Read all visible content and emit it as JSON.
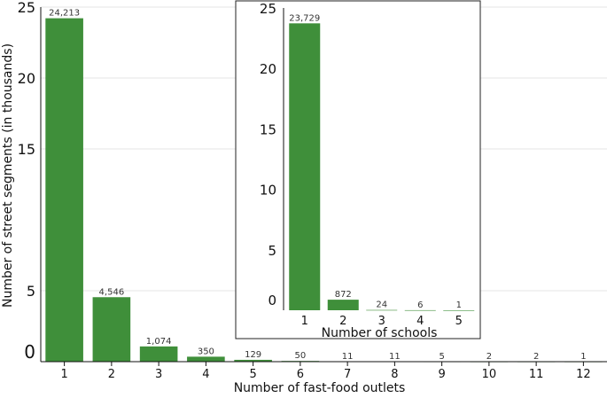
{
  "chart_data": [
    {
      "type": "bar",
      "categories": [
        "1",
        "2",
        "3",
        "4",
        "5",
        "6",
        "7",
        "8",
        "9",
        "10",
        "11",
        "12"
      ],
      "values": [
        24.213,
        4.546,
        1.074,
        0.35,
        0.129,
        0.05,
        0.011,
        0.011,
        0.005,
        0.002,
        0.002,
        0.001
      ],
      "data_labels": [
        "24,213",
        "4,546",
        "1,074",
        "350",
        "129",
        "50",
        "11",
        "11",
        "5",
        "2",
        "2",
        "1"
      ],
      "xlabel": "Number of fast-food outlets",
      "ylabel": "Number of street segments (in thousands)",
      "ylim": [
        0,
        25
      ],
      "yticks": [
        0,
        5,
        15,
        20,
        25
      ],
      "grid": true,
      "bar_color": "#3f8f3a"
    },
    {
      "type": "bar",
      "categories": [
        "1",
        "2",
        "3",
        "4",
        "5"
      ],
      "values": [
        23.729,
        0.872,
        0.024,
        0.006,
        0.001
      ],
      "data_labels": [
        "23,729",
        "872",
        "24",
        "6",
        "1"
      ],
      "xlabel": "Number of schools",
      "ylabel": "",
      "ylim": [
        0,
        25
      ],
      "yticks": [
        0,
        5,
        10,
        15,
        20,
        25
      ],
      "grid": false,
      "bar_color": "#3f8f3a",
      "placement": "inset-top-center"
    }
  ]
}
